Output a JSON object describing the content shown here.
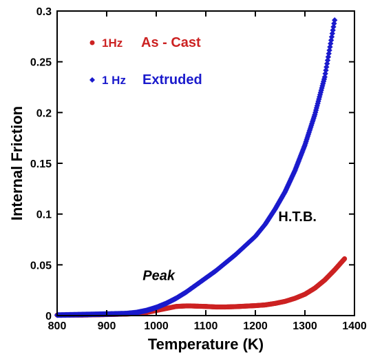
{
  "chart_data": {
    "type": "scatter",
    "xlabel": "Temperature (K)",
    "ylabel": "Internal Friction",
    "xlim": [
      800,
      1400
    ],
    "ylim": [
      0,
      0.3
    ],
    "xticks": [
      800,
      900,
      1000,
      1100,
      1200,
      1300,
      1400
    ],
    "yticks": [
      0,
      0.05,
      0.1,
      0.15,
      0.2,
      0.25,
      0.3
    ],
    "ytick_labels": [
      "0",
      "0.05",
      "0.1",
      "0.15",
      "0.2",
      "0.25",
      "0.3"
    ],
    "grid": false,
    "legend_position": "top-left",
    "series": [
      {
        "name": "As - Cast",
        "label_prefix": "1Hz",
        "color": "#cc2222",
        "marker": "circle",
        "x": [
          800,
          850,
          900,
          940,
          960,
          980,
          1000,
          1020,
          1040,
          1060,
          1070,
          1080,
          1100,
          1120,
          1140,
          1160,
          1180,
          1200,
          1220,
          1240,
          1260,
          1280,
          1300,
          1320,
          1340,
          1360,
          1380
        ],
        "y": [
          0.0005,
          0.0005,
          0.001,
          0.0015,
          0.002,
          0.003,
          0.005,
          0.007,
          0.009,
          0.0095,
          0.0095,
          0.0093,
          0.009,
          0.0085,
          0.0085,
          0.0088,
          0.0093,
          0.0098,
          0.0105,
          0.012,
          0.014,
          0.017,
          0.021,
          0.027,
          0.035,
          0.045,
          0.056
        ]
      },
      {
        "name": "Extruded",
        "label_prefix": "1 Hz",
        "color": "#1a1acc",
        "marker": "diamond",
        "x": [
          800,
          850,
          900,
          940,
          960,
          980,
          1000,
          1020,
          1040,
          1060,
          1080,
          1100,
          1120,
          1140,
          1160,
          1180,
          1200,
          1220,
          1240,
          1260,
          1280,
          1300,
          1320,
          1340,
          1360
        ],
        "y": [
          0.0005,
          0.001,
          0.0015,
          0.002,
          0.003,
          0.005,
          0.008,
          0.012,
          0.017,
          0.023,
          0.03,
          0.037,
          0.044,
          0.052,
          0.06,
          0.069,
          0.078,
          0.09,
          0.105,
          0.122,
          0.143,
          0.168,
          0.198,
          0.235,
          0.291
        ]
      }
    ],
    "annotations": [
      {
        "text": "Peak",
        "x": 1005,
        "y": 0.035,
        "style": "italic"
      },
      {
        "text": "H.T.B.",
        "x": 1285,
        "y": 0.093,
        "style": "normal"
      }
    ]
  }
}
